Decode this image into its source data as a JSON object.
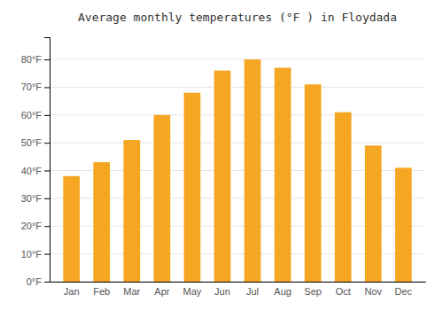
{
  "chart_data": {
    "type": "bar",
    "title": "Average monthly temperatures (°F ) in Floydada",
    "categories": [
      "Jan",
      "Feb",
      "Mar",
      "Apr",
      "May",
      "Jun",
      "Jul",
      "Aug",
      "Sep",
      "Oct",
      "Nov",
      "Dec"
    ],
    "values": [
      38,
      43,
      51,
      60,
      68,
      76,
      80,
      77,
      71,
      61,
      49,
      41
    ],
    "color": "#F5A623",
    "ylim": [
      0,
      88
    ],
    "yticks": [
      {
        "value": 0,
        "label": "0°F"
      },
      {
        "value": 10,
        "label": "10°F"
      },
      {
        "value": 20,
        "label": "20°F"
      },
      {
        "value": 30,
        "label": "30°F"
      },
      {
        "value": 40,
        "label": "40°F"
      },
      {
        "value": 50,
        "label": "50°F"
      },
      {
        "value": 60,
        "label": "60°F"
      },
      {
        "value": 70,
        "label": "70°F"
      },
      {
        "value": 80,
        "label": "80°F"
      }
    ],
    "grid": true
  }
}
